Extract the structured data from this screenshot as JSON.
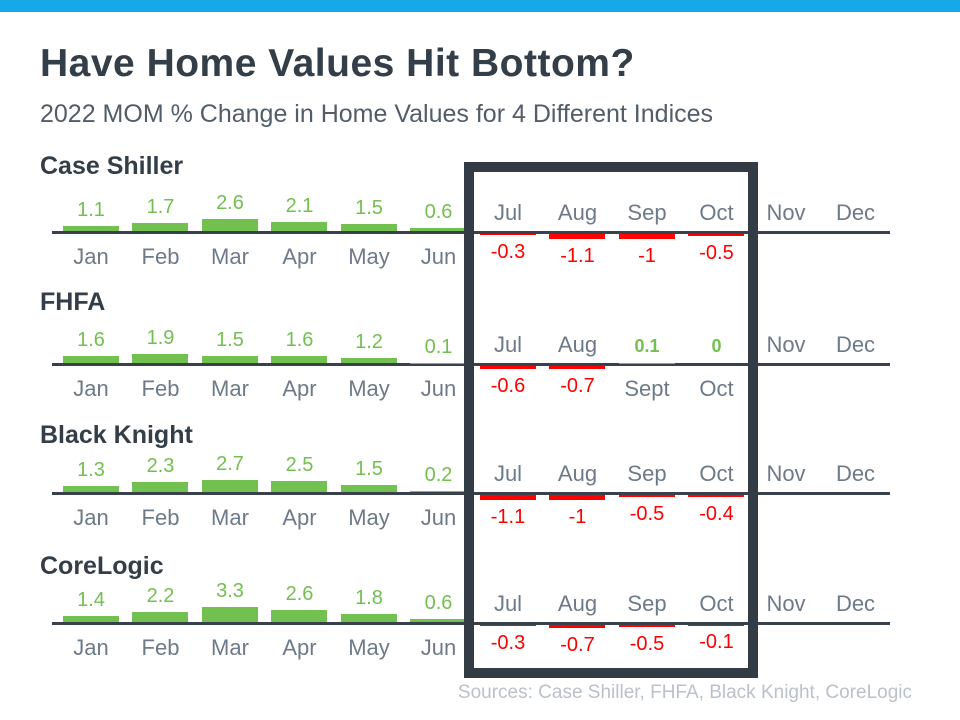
{
  "page": {
    "title": "Have Home Values Hit Bottom?",
    "subtitle": "2022 MOM % Change in Home Values for 4 Different Indices",
    "sources": "Sources: Case Shiller, FHFA, Black Knight, CoreLogic"
  },
  "colors": {
    "topbar": "#16a9e9",
    "heading": "#333e48",
    "subtitle": "#515d68",
    "month": "#6d7a89",
    "positive": "#72c050",
    "negative": "#fe0000",
    "axis": "#39424c",
    "box": "#333b44",
    "sources": "#b9c1c9"
  },
  "highlight": {
    "months_boxed": [
      "Jul",
      "Aug",
      "Sep",
      "Oct"
    ]
  },
  "chart_data": [
    {
      "type": "bar",
      "title": "Case Shiller",
      "categories": [
        "Jan",
        "Feb",
        "Mar",
        "Apr",
        "May",
        "Jun",
        "Jul",
        "Aug",
        "Sep",
        "Oct",
        "Nov",
        "Dec"
      ],
      "values": [
        1.1,
        1.7,
        2.6,
        2.1,
        1.5,
        0.6,
        -0.3,
        -1.1,
        -1,
        -0.5,
        null,
        null
      ],
      "ylim": [
        -1.5,
        3.5
      ],
      "grid": false,
      "legend": false
    },
    {
      "type": "bar",
      "title": "FHFA",
      "categories": [
        "Jan",
        "Feb",
        "Mar",
        "Apr",
        "May",
        "Jun",
        "Jul",
        "Aug",
        "Sept",
        "Oct",
        "Nov",
        "Dec"
      ],
      "values": [
        1.6,
        1.9,
        1.5,
        1.6,
        1.2,
        0.1,
        -0.6,
        -0.7,
        0.1,
        0,
        null,
        null
      ],
      "ylim": [
        -1.5,
        3.5
      ],
      "grid": false,
      "legend": false
    },
    {
      "type": "bar",
      "title": "Black Knight",
      "categories": [
        "Jan",
        "Feb",
        "Mar",
        "Apr",
        "May",
        "Jun",
        "Jul",
        "Aug",
        "Sep",
        "Oct",
        "Nov",
        "Dec"
      ],
      "values": [
        1.3,
        2.3,
        2.7,
        2.5,
        1.5,
        0.2,
        -1.1,
        -1,
        -0.5,
        -0.4,
        null,
        null
      ],
      "ylim": [
        -1.5,
        3.5
      ],
      "grid": false,
      "legend": false
    },
    {
      "type": "bar",
      "title": "CoreLogic",
      "categories": [
        "Jan",
        "Feb",
        "Mar",
        "Apr",
        "May",
        "Jun",
        "Jul",
        "Aug",
        "Sep",
        "Oct",
        "Nov",
        "Dec"
      ],
      "values": [
        1.4,
        2.2,
        3.3,
        2.6,
        1.8,
        0.6,
        -0.3,
        -0.7,
        -0.5,
        -0.1,
        null,
        null
      ],
      "ylim": [
        -1.5,
        3.5
      ],
      "grid": false,
      "legend": false
    }
  ]
}
